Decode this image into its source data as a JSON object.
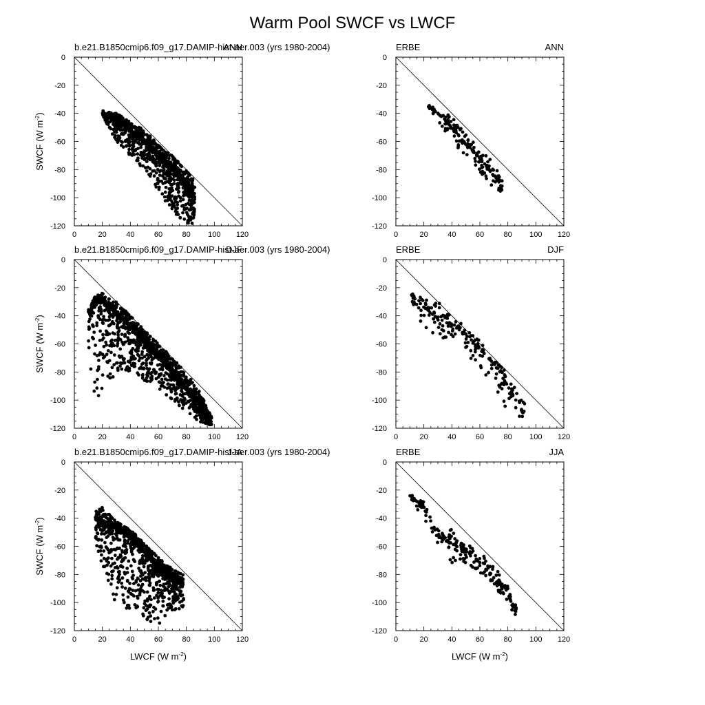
{
  "figure": {
    "title": "Warm Pool SWCF vs LWCF"
  },
  "axes": {
    "x_ticks": [
      "0",
      "20",
      "40",
      "60",
      "80",
      "100",
      "120"
    ],
    "y_ticks": [
      "0",
      "-20",
      "-40",
      "-60",
      "-80",
      "-100",
      "-120"
    ],
    "xlabel": "LWCF (W m",
    "xlabel_sup": "-2",
    "xlabel_end": ")",
    "ylabel": "SWCF (W m",
    "ylabel_sup": "-2",
    "ylabel_end": ")"
  },
  "chart_data": [
    {
      "type": "scatter",
      "panel": "model-ann",
      "left_label": "b.e21.B1850cmip6.f09_g17.DAMIP-hist-aer.003 (yrs 1980-2004)",
      "right_label": "ANN",
      "xlim": [
        0,
        120
      ],
      "ylim": [
        -120,
        0
      ],
      "grid": false,
      "reference_line": "one-to-one",
      "point_cloud": {
        "x_range": [
          20,
          86
        ],
        "y_range": [
          -120,
          -38
        ],
        "count_estimate": 1200,
        "centerline": [
          [
            20,
            -40
          ],
          [
            30,
            -44
          ],
          [
            40,
            -52
          ],
          [
            50,
            -60
          ],
          [
            60,
            -70
          ],
          [
            70,
            -80
          ],
          [
            80,
            -92
          ],
          [
            86,
            -100
          ]
        ],
        "lower_spread": [
          [
            20,
            -42
          ],
          [
            30,
            -60
          ],
          [
            40,
            -70
          ],
          [
            50,
            -80
          ],
          [
            60,
            -95
          ],
          [
            70,
            -110
          ],
          [
            80,
            -118
          ],
          [
            86,
            -120
          ]
        ],
        "upper_spread": [
          [
            20,
            -38
          ],
          [
            30,
            -40
          ],
          [
            40,
            -46
          ],
          [
            50,
            -52
          ],
          [
            60,
            -62
          ],
          [
            70,
            -70
          ],
          [
            80,
            -80
          ],
          [
            86,
            -88
          ]
        ]
      }
    },
    {
      "type": "scatter",
      "panel": "obs-ann",
      "left_label": "ERBE",
      "right_label": "ANN",
      "xlim": [
        0,
        120
      ],
      "ylim": [
        -120,
        0
      ],
      "grid": false,
      "reference_line": "one-to-one",
      "point_cloud": {
        "x_range": [
          23,
          76
        ],
        "y_range": [
          -96,
          -34
        ],
        "count_estimate": 180,
        "centerline": [
          [
            23,
            -35
          ],
          [
            30,
            -40
          ],
          [
            40,
            -50
          ],
          [
            50,
            -62
          ],
          [
            60,
            -72
          ],
          [
            70,
            -84
          ],
          [
            76,
            -92
          ]
        ],
        "lower_spread": [
          [
            23,
            -37
          ],
          [
            30,
            -48
          ],
          [
            40,
            -60
          ],
          [
            50,
            -70
          ],
          [
            60,
            -82
          ],
          [
            70,
            -95
          ],
          [
            76,
            -96
          ]
        ],
        "upper_spread": [
          [
            23,
            -34
          ],
          [
            30,
            -36
          ],
          [
            40,
            -42
          ],
          [
            50,
            -55
          ],
          [
            60,
            -65
          ],
          [
            70,
            -75
          ],
          [
            76,
            -88
          ]
        ]
      }
    },
    {
      "type": "scatter",
      "panel": "model-djf",
      "left_label": "b.e21.B1850cmip6.f09_g17.DAMIP-hist-aer.003 (yrs 1980-2004)",
      "right_label": "DJF",
      "xlim": [
        0,
        120
      ],
      "ylim": [
        -120,
        0
      ],
      "grid": false,
      "reference_line": "one-to-one",
      "point_cloud": {
        "x_range": [
          10,
          98
        ],
        "y_range": [
          -118,
          -24
        ],
        "count_estimate": 1500,
        "centerline": [
          [
            10,
            -40
          ],
          [
            15,
            -30
          ],
          [
            20,
            -30
          ],
          [
            30,
            -38
          ],
          [
            40,
            -48
          ],
          [
            50,
            -58
          ],
          [
            60,
            -68
          ],
          [
            70,
            -80
          ],
          [
            80,
            -92
          ],
          [
            90,
            -104
          ],
          [
            98,
            -116
          ]
        ],
        "lower_spread": [
          [
            10,
            -84
          ],
          [
            15,
            -96
          ],
          [
            20,
            -98
          ],
          [
            30,
            -80
          ],
          [
            40,
            -80
          ],
          [
            50,
            -88
          ],
          [
            60,
            -92
          ],
          [
            70,
            -100
          ],
          [
            80,
            -108
          ],
          [
            90,
            -116
          ],
          [
            98,
            -118
          ]
        ],
        "upper_spread": [
          [
            10,
            -34
          ],
          [
            15,
            -26
          ],
          [
            20,
            -24
          ],
          [
            30,
            -30
          ],
          [
            40,
            -40
          ],
          [
            50,
            -50
          ],
          [
            60,
            -60
          ],
          [
            70,
            -70
          ],
          [
            80,
            -80
          ],
          [
            90,
            -95
          ],
          [
            98,
            -112
          ]
        ]
      }
    },
    {
      "type": "scatter",
      "panel": "obs-djf",
      "left_label": "ERBE",
      "right_label": "DJF",
      "xlim": [
        0,
        120
      ],
      "ylim": [
        -120,
        0
      ],
      "grid": false,
      "reference_line": "one-to-one",
      "point_cloud": {
        "x_range": [
          10,
          92
        ],
        "y_range": [
          -116,
          -22
        ],
        "count_estimate": 220,
        "centerline": [
          [
            10,
            -24
          ],
          [
            20,
            -34
          ],
          [
            30,
            -42
          ],
          [
            40,
            -46
          ],
          [
            50,
            -54
          ],
          [
            60,
            -64
          ],
          [
            70,
            -74
          ],
          [
            80,
            -90
          ],
          [
            90,
            -108
          ]
        ],
        "lower_spread": [
          [
            10,
            -26
          ],
          [
            20,
            -50
          ],
          [
            30,
            -56
          ],
          [
            40,
            -56
          ],
          [
            50,
            -66
          ],
          [
            60,
            -78
          ],
          [
            70,
            -90
          ],
          [
            80,
            -108
          ],
          [
            90,
            -114
          ]
        ],
        "upper_spread": [
          [
            10,
            -22
          ],
          [
            20,
            -28
          ],
          [
            30,
            -28
          ],
          [
            40,
            -40
          ],
          [
            50,
            -48
          ],
          [
            60,
            -58
          ],
          [
            70,
            -70
          ],
          [
            80,
            -80
          ],
          [
            90,
            -100
          ]
        ]
      }
    },
    {
      "type": "scatter",
      "panel": "model-jja",
      "left_label": "b.e21.B1850cmip6.f09_g17.DAMIP-hist-aer.003 (yrs 1980-2004)",
      "right_label": "JJA",
      "xlim": [
        0,
        120
      ],
      "ylim": [
        -120,
        0
      ],
      "grid": false,
      "reference_line": "one-to-one",
      "point_cloud": {
        "x_range": [
          15,
          78
        ],
        "y_range": [
          -116,
          -32
        ],
        "count_estimate": 1200,
        "centerline": [
          [
            15,
            -40
          ],
          [
            20,
            -45
          ],
          [
            30,
            -47
          ],
          [
            40,
            -54
          ],
          [
            50,
            -64
          ],
          [
            60,
            -76
          ],
          [
            70,
            -84
          ],
          [
            78,
            -86
          ]
        ],
        "lower_spread": [
          [
            15,
            -58
          ],
          [
            20,
            -80
          ],
          [
            30,
            -108
          ],
          [
            40,
            -108
          ],
          [
            50,
            -112
          ],
          [
            60,
            -116
          ],
          [
            70,
            -106
          ],
          [
            78,
            -104
          ]
        ],
        "upper_spread": [
          [
            15,
            -34
          ],
          [
            20,
            -32
          ],
          [
            30,
            -42
          ],
          [
            40,
            -48
          ],
          [
            50,
            -58
          ],
          [
            60,
            -68
          ],
          [
            70,
            -76
          ],
          [
            78,
            -80
          ]
        ]
      }
    },
    {
      "type": "scatter",
      "panel": "obs-jja",
      "left_label": "ERBE",
      "right_label": "JJA",
      "xlim": [
        0,
        120
      ],
      "ylim": [
        -120,
        0
      ],
      "grid": false,
      "reference_line": "one-to-one",
      "point_cloud": {
        "x_range": [
          10,
          86
        ],
        "y_range": [
          -110,
          -22
        ],
        "count_estimate": 220,
        "centerline": [
          [
            10,
            -24
          ],
          [
            20,
            -32
          ],
          [
            30,
            -52
          ],
          [
            40,
            -58
          ],
          [
            50,
            -64
          ],
          [
            60,
            -72
          ],
          [
            70,
            -82
          ],
          [
            80,
            -94
          ],
          [
            86,
            -108
          ]
        ],
        "lower_spread": [
          [
            10,
            -28
          ],
          [
            20,
            -40
          ],
          [
            30,
            -60
          ],
          [
            40,
            -72
          ],
          [
            50,
            -76
          ],
          [
            60,
            -80
          ],
          [
            70,
            -88
          ],
          [
            80,
            -102
          ],
          [
            86,
            -110
          ]
        ],
        "upper_spread": [
          [
            10,
            -22
          ],
          [
            20,
            -28
          ],
          [
            30,
            -48
          ],
          [
            40,
            -48
          ],
          [
            50,
            -58
          ],
          [
            60,
            -64
          ],
          [
            70,
            -74
          ],
          [
            80,
            -88
          ],
          [
            86,
            -100
          ]
        ]
      }
    }
  ]
}
